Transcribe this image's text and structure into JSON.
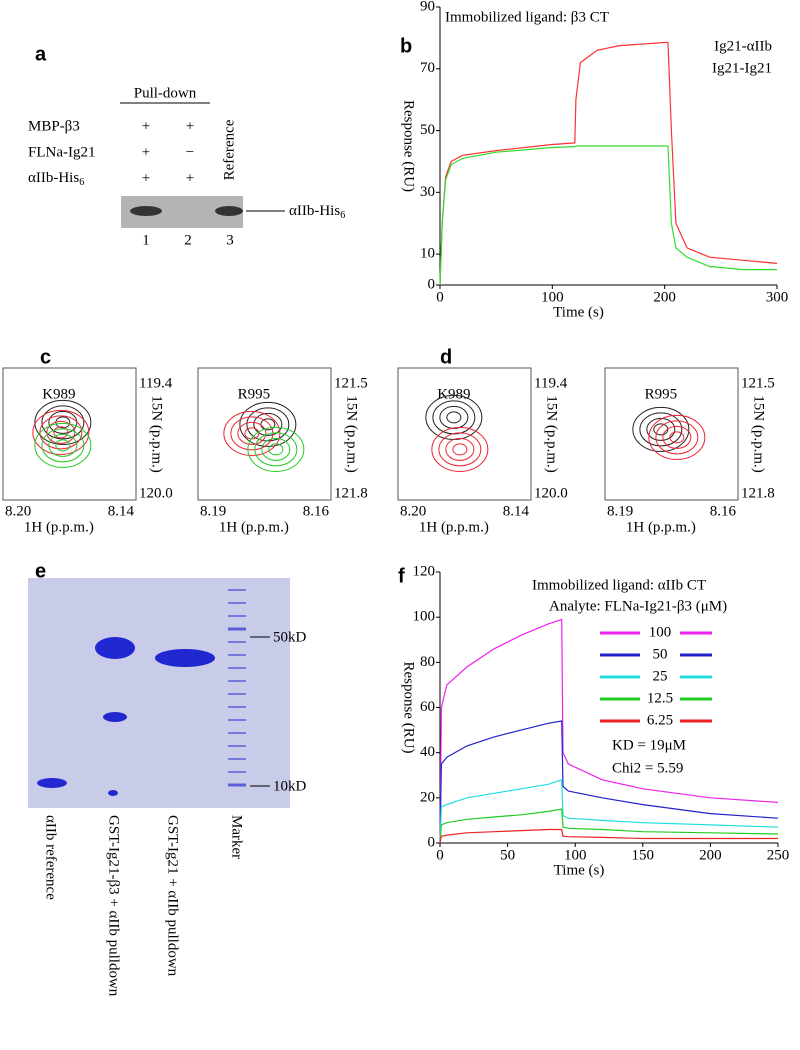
{
  "chart_data": [
    {
      "type": "line",
      "panel": "b",
      "title": "Immobilized ligand: β3 CT",
      "xlabel": "Time (s)",
      "ylabel": "Response (RU)",
      "x": [
        0,
        2,
        5,
        10,
        20,
        50,
        100,
        120,
        121,
        125,
        140,
        160,
        200,
        203,
        206,
        210,
        220,
        240,
        270,
        300
      ],
      "series": [
        {
          "name": "Ig21-αIIb",
          "color": "#ff3030",
          "values": [
            0,
            20,
            35,
            40,
            42,
            43.5,
            45.5,
            46,
            60,
            72,
            76,
            77.5,
            78.5,
            78.5,
            50,
            20,
            12,
            9,
            8,
            7
          ]
        },
        {
          "name": "Ig21-Ig21",
          "color": "#30dd30",
          "values": [
            0,
            20,
            34,
            39,
            41,
            43,
            44.5,
            44.8,
            45,
            45,
            45,
            45,
            45,
            45,
            20,
            12,
            9,
            6,
            5,
            5
          ]
        }
      ],
      "xlim": [
        0,
        300
      ],
      "xticks": [
        0,
        100,
        200,
        300
      ],
      "ylim": [
        0,
        90
      ],
      "yticks": [
        0,
        10,
        30,
        50,
        70,
        90
      ]
    },
    {
      "type": "line",
      "panel": "f",
      "annotations": [
        "Immobilized ligand: αIIb CT",
        "Analyte: FLNa-Ig21-β3 (μM)",
        "KD = 19μM",
        "Chi2 = 5.59"
      ],
      "xlabel": "Time (s)",
      "ylabel": "Response (RU)",
      "x": [
        0,
        1,
        5,
        20,
        40,
        60,
        80,
        90,
        91,
        95,
        120,
        150,
        200,
        250
      ],
      "series": [
        {
          "name": "100",
          "color": "#ee22ee",
          "values": [
            0,
            60,
            70,
            78,
            86,
            92,
            97,
            99,
            40,
            35,
            28,
            24,
            20,
            18
          ]
        },
        {
          "name": "50",
          "color": "#2222cc",
          "values": [
            0,
            35,
            38,
            43,
            47,
            50,
            53,
            54,
            25,
            23,
            20,
            17,
            13,
            11
          ]
        },
        {
          "name": "25",
          "color": "#22dddd",
          "values": [
            0,
            16,
            17,
            20,
            22,
            24,
            26,
            28,
            12,
            11,
            10,
            9,
            8,
            7
          ]
        },
        {
          "name": "12.5",
          "color": "#22cc22",
          "values": [
            0,
            8,
            9,
            10.5,
            11.5,
            12.5,
            14,
            15,
            7,
            6.5,
            6,
            5,
            4.5,
            4
          ]
        },
        {
          "name": "6.25",
          "color": "#ee2222",
          "values": [
            0,
            3,
            3.5,
            4.5,
            5,
            5.5,
            6,
            6,
            3,
            2.8,
            2.5,
            2,
            2,
            2
          ]
        }
      ],
      "xlim": [
        0,
        250
      ],
      "xticks": [
        0,
        50,
        100,
        150,
        200,
        250
      ],
      "ylim": [
        0,
        120
      ],
      "yticks": [
        0,
        20,
        40,
        60,
        80,
        100,
        120
      ]
    }
  ],
  "panel_a": {
    "label": "a",
    "group": "Pull-down",
    "reference": "Reference",
    "rows": [
      {
        "name": "MBP-β3",
        "marks": [
          "+",
          "+"
        ]
      },
      {
        "name": "FLNa-Ig21",
        "marks": [
          "+",
          "−"
        ]
      },
      {
        "name": "αIIb-His",
        "sub": "6",
        "marks": [
          "+",
          "+"
        ]
      }
    ],
    "band": {
      "text": "αIIb-His",
      "sub": "6"
    },
    "lanes": [
      "1",
      "2",
      "3"
    ]
  },
  "nmr": [
    {
      "label": "c",
      "plots": [
        {
          "residue": "K989",
          "y_top": "119.4",
          "y_bottom": "120.0",
          "x_left": "8.20",
          "x_right": "8.14",
          "xlabel": "1H (p.p.m.)",
          "ylabel": "15N (p.p.m.)"
        },
        {
          "residue": "R995",
          "y_top": "121.5",
          "y_bottom": "121.8",
          "x_left": "8.19",
          "x_right": "8.16",
          "xlabel": "1H (p.p.m.)",
          "ylabel": "15N (p.p.m.)"
        }
      ]
    },
    {
      "label": "d",
      "plots": [
        {
          "residue": "K989",
          "y_top": "119.4",
          "y_bottom": "120.0",
          "x_left": "8.20",
          "x_right": "8.14",
          "xlabel": "1H (p.p.m.)",
          "ylabel": "15N (p.p.m.)"
        },
        {
          "residue": "R995",
          "y_top": "121.5",
          "y_bottom": "121.8",
          "x_left": "8.19",
          "x_right": "8.16",
          "xlabel": "1H (p.p.m.)",
          "ylabel": "15N (p.p.m.)"
        }
      ]
    }
  ],
  "panel_e": {
    "label": "e",
    "markers": [
      "50kD",
      "10kD"
    ],
    "lanes": [
      "αIIb reference",
      "GST-Ig21-β3 + αIIb pulldown",
      "GST-Ig21 + αIIb pulldown",
      "Marker"
    ]
  }
}
